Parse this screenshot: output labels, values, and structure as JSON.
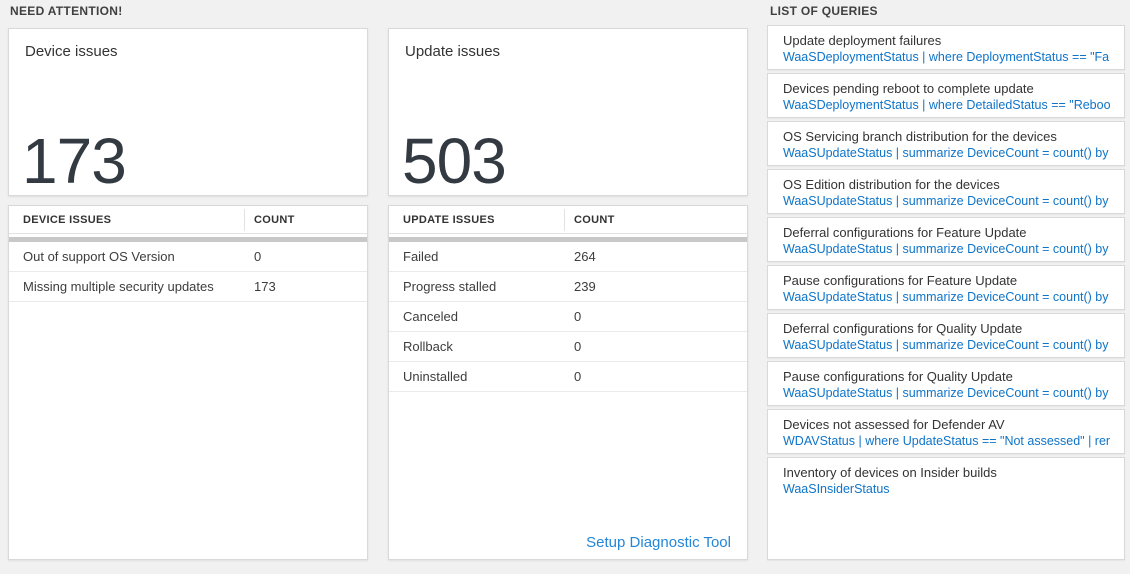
{
  "need_attention": {
    "header": "NEED ATTENTION!",
    "device_card": {
      "title": "Device issues",
      "count": "173"
    },
    "device_table": {
      "columns": [
        "DEVICE ISSUES",
        "COUNT"
      ],
      "rows": [
        {
          "label": "Out of support OS Version",
          "count": "0"
        },
        {
          "label": "Missing multiple security updates",
          "count": "173"
        }
      ]
    },
    "update_card": {
      "title": "Update issues",
      "count": "503"
    },
    "update_table": {
      "columns": [
        "UPDATE ISSUES",
        "COUNT"
      ],
      "rows": [
        {
          "label": "Failed",
          "count": "264"
        },
        {
          "label": "Progress stalled",
          "count": "239"
        },
        {
          "label": "Canceled",
          "count": "0"
        },
        {
          "label": "Rollback",
          "count": "0"
        },
        {
          "label": "Uninstalled",
          "count": "0"
        }
      ],
      "footer_link": "Setup Diagnostic Tool"
    }
  },
  "queries": {
    "header": "LIST OF QUERIES",
    "items": [
      {
        "title": "Update deployment failures",
        "query": "WaaSDeploymentStatus | where DeploymentStatus == \"Failed\" |..."
      },
      {
        "title": "Devices pending reboot to complete update",
        "query": "WaaSDeploymentStatus | where DetailedStatus == \"Reboot pend..."
      },
      {
        "title": "OS Servicing branch distribution for the devices",
        "query": "WaaSUpdateStatus | summarize DeviceCount = count() by OSSer..."
      },
      {
        "title": "OS Edition distribution for the devices",
        "query": "WaaSUpdateStatus | summarize DeviceCount = count() by OSEdit..."
      },
      {
        "title": "Deferral configurations for Feature Update",
        "query": "WaaSUpdateStatus | summarize DeviceCount = count() by Featur..."
      },
      {
        "title": "Pause configurations for Feature Update",
        "query": "WaaSUpdateStatus | summarize DeviceCount = count() by Featur..."
      },
      {
        "title": "Deferral configurations for Quality Update",
        "query": "WaaSUpdateStatus | summarize DeviceCount = count() by Qualit..."
      },
      {
        "title": "Pause configurations for Quality Update",
        "query": "WaaSUpdateStatus | summarize DeviceCount = count() by Qualit..."
      },
      {
        "title": "Devices not assessed for Defender AV",
        "query": "WDAVStatus | where UpdateStatus == \"Not assessed\" | render ta..."
      },
      {
        "title": "Inventory of devices on Insider builds",
        "query": "WaaSInsiderStatus"
      }
    ]
  },
  "colors": {
    "page_background": "#f1f1f1",
    "card_background": "#ffffff",
    "query_link_blue": "#0f74c8",
    "setup_link_blue": "#2486d8",
    "big_number_text": "#333a42",
    "table_divider_bar": "#c8c8c8"
  }
}
